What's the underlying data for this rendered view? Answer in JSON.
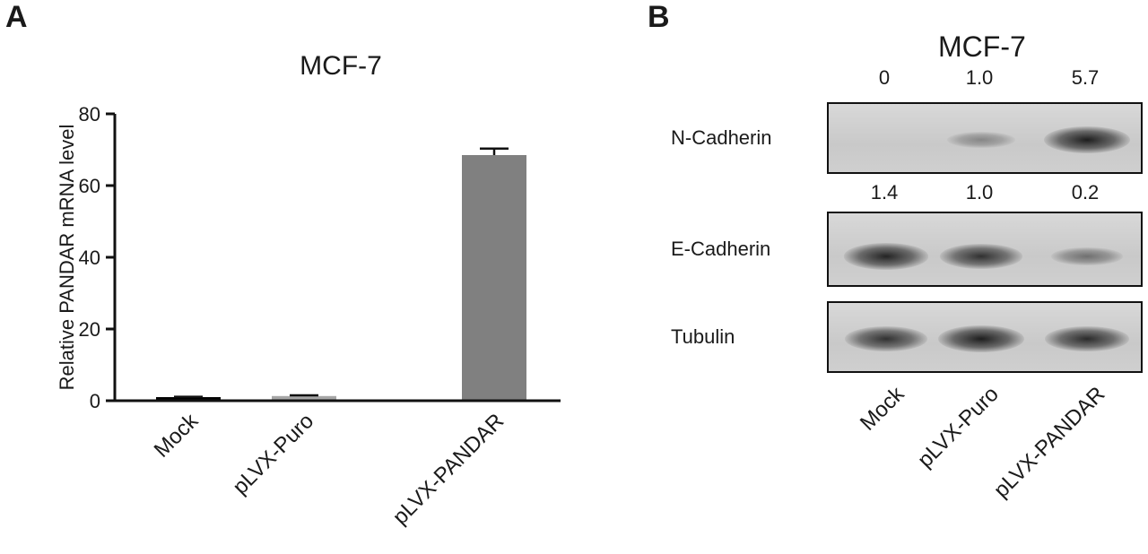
{
  "panel_a": {
    "letter": "A",
    "chart_data": {
      "type": "bar",
      "title": "MCF-7",
      "xlabel": "",
      "ylabel": "Relative PANDAR mRNA level",
      "categories": [
        "Mock",
        "pLVX-Puro",
        "pLVX-PANDAR"
      ],
      "values": [
        1.0,
        1.3,
        68.5
      ],
      "error": [
        0.1,
        0.2,
        1.8
      ],
      "ylim": [
        0,
        80
      ],
      "yticks": [
        0,
        20,
        40,
        60,
        80
      ],
      "bar_colors": [
        "#000000",
        "#a6a6a6",
        "#808080"
      ],
      "grid": false
    }
  },
  "panel_b": {
    "letter": "B",
    "title": "MCF-7",
    "lanes": [
      "Mock",
      "pLVX-Puro",
      "pLVX-PANDAR"
    ],
    "blots": [
      {
        "label": "N-Cadherin",
        "quant": [
          "0",
          "1.0",
          "5.7"
        ],
        "intensity": [
          0.0,
          0.18,
          1.0
        ]
      },
      {
        "label": "E-Cadherin",
        "quant": [
          "1.4",
          "1.0",
          "0.2"
        ],
        "intensity": [
          0.95,
          0.85,
          0.35
        ]
      },
      {
        "label": "Tubulin",
        "quant": [],
        "intensity": [
          0.85,
          1.0,
          0.9
        ]
      }
    ]
  }
}
